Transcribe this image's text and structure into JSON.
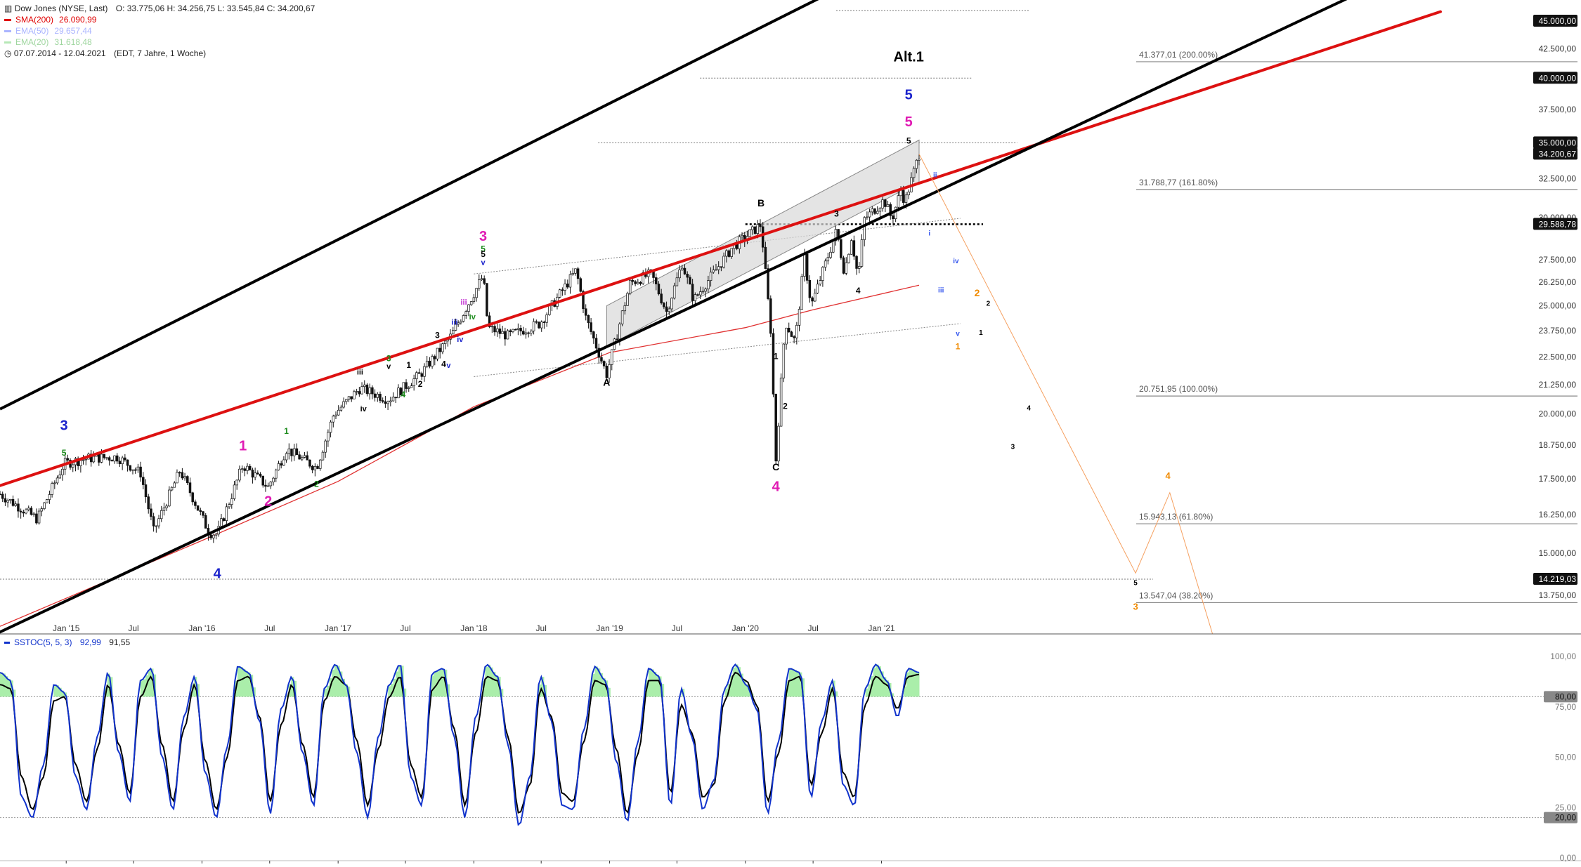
{
  "header": {
    "instrument": "Dow Jones (NYSE, Last)",
    "ohlc": "O: 33.775,06   H: 34.256,75   L: 33.545,84   C: 34.200,67",
    "range": "07.07.2014 - 12.04.2021",
    "range_detail": "(EDT, 7 Jahre, 1 Woche)"
  },
  "legend": [
    {
      "label": "SMA(200)",
      "value": "26.090,99",
      "color": "#e00000"
    },
    {
      "label": "EMA(50)",
      "value": "29.657,44",
      "color": "#aab4ff"
    },
    {
      "label": "EMA(20)",
      "value": "31.618,48",
      "color": "#b6e8b6"
    }
  ],
  "stoch_legend": {
    "label": "SSTOC(5, 5, 3)",
    "v1": "92,99",
    "v2": "91,55",
    "color": "#1133cc"
  },
  "colors": {
    "up_candle": "#ffffff",
    "down_candle": "#111111",
    "red_channel": "#dd1111",
    "black_channel": "#000000",
    "fib_line": "#888888",
    "sma": "#e03030",
    "stoch_k": "#1133cc",
    "stoch_d": "#000000",
    "stoch_fill": "#aaeeaa"
  },
  "chart_data": [
    {
      "type": "candlestick",
      "title": "Dow Jones (NYSE, Last)",
      "x_tick_labels": [
        "Jan '15",
        "Jul",
        "Jan '16",
        "Jul",
        "Jan '17",
        "Jul",
        "Jan '18",
        "Jul",
        "Jan '19",
        "Jul",
        "Jan '20",
        "Jul",
        "Jan '21"
      ],
      "x_tick_dates": [
        "2015-01",
        "2015-07",
        "2016-01",
        "2016-07",
        "2017-01",
        "2017-07",
        "2018-01",
        "2018-07",
        "2019-01",
        "2019-07",
        "2020-01",
        "2020-07",
        "2021-01"
      ],
      "y_ticks": [
        13750,
        15000,
        16250,
        17500,
        18750,
        20000,
        21250,
        22500,
        23750,
        25000,
        26250,
        27500,
        30000,
        32500,
        35000,
        37500,
        40000,
        42500,
        45000
      ],
      "y_tick_labels": [
        "13.750,00",
        "15.000,00",
        "16.250,00",
        "17.500,00",
        "18.750,00",
        "20.000,00",
        "21.250,00",
        "22.500,00",
        "23.750,00",
        "25.000,00",
        "26.250,00",
        "27.500,00",
        "30.000,00",
        "32.500,00",
        "35.000,00",
        "37.500,00",
        "40.000,00",
        "42.500,00",
        "45.000,00"
      ],
      "y_scale": "log",
      "ylim": [
        12700,
        47000
      ],
      "price_tags": [
        {
          "label": "45.000,00",
          "value": 45000
        },
        {
          "label": "40.000,00",
          "value": 40000
        },
        {
          "label": "35.000,00",
          "value": 35000
        },
        {
          "label": "34.200,67",
          "value": 34200.67
        },
        {
          "label": "29.588,78",
          "value": 29588.78
        },
        {
          "label": "14.219,03",
          "value": 14219.03
        }
      ],
      "close_path": [
        [
          "2014-07-07",
          16950
        ],
        [
          "2014-10-15",
          16100
        ],
        [
          "2014-12-26",
          18050
        ],
        [
          "2015-03-02",
          18250
        ],
        [
          "2015-05-19",
          18300
        ],
        [
          "2015-07-20",
          17700
        ],
        [
          "2015-08-24",
          15700
        ],
        [
          "2015-11-03",
          17800
        ],
        [
          "2016-01-20",
          15660
        ],
        [
          "2016-02-11",
          15600
        ],
        [
          "2016-04-20",
          18000
        ],
        [
          "2016-06-27",
          17200
        ],
        [
          "2016-08-15",
          18600
        ],
        [
          "2016-11-04",
          17900
        ],
        [
          "2016-12-20",
          19970
        ],
        [
          "2017-03-01",
          21100
        ],
        [
          "2017-05-17",
          20600
        ],
        [
          "2017-08-10",
          21700
        ],
        [
          "2017-11-01",
          23500
        ],
        [
          "2018-01-26",
          26600
        ],
        [
          "2018-02-08",
          23900
        ],
        [
          "2018-04-02",
          23500
        ],
        [
          "2018-06-27",
          24100
        ],
        [
          "2018-10-03",
          26900
        ],
        [
          "2018-10-29",
          24400
        ],
        [
          "2018-12-24",
          21700
        ],
        [
          "2019-02-25",
          26200
        ],
        [
          "2019-04-23",
          26700
        ],
        [
          "2019-06-03",
          24700
        ],
        [
          "2019-07-15",
          27300
        ],
        [
          "2019-08-15",
          25300
        ],
        [
          "2019-11-27",
          28200
        ],
        [
          "2020-02-12",
          29570
        ],
        [
          "2020-03-09",
          23800
        ],
        [
          "2020-03-23",
          18200
        ],
        [
          "2020-04-17",
          24200
        ],
        [
          "2020-05-14",
          23200
        ],
        [
          "2020-06-08",
          27600
        ],
        [
          "2020-06-26",
          25000
        ],
        [
          "2020-09-02",
          29200
        ],
        [
          "2020-09-23",
          26800
        ],
        [
          "2020-10-12",
          28800
        ],
        [
          "2020-10-30",
          26500
        ],
        [
          "2020-11-16",
          29900
        ],
        [
          "2021-01-08",
          31100
        ],
        [
          "2021-01-29",
          29900
        ],
        [
          "2021-02-24",
          31900
        ],
        [
          "2021-03-04",
          30900
        ],
        [
          "2021-04-12",
          34200
        ]
      ],
      "sma200_path": [
        [
          "2014-07-07",
          12900
        ],
        [
          "2016-01-01",
          15400
        ],
        [
          "2017-01-01",
          17400
        ],
        [
          "2018-01-01",
          20300
        ],
        [
          "2019-01-01",
          22700
        ],
        [
          "2020-01-01",
          23900
        ],
        [
          "2020-07-01",
          24800
        ],
        [
          "2021-04-12",
          26090
        ]
      ],
      "trendlines": {
        "red_upper": [
          [
            "2014-07-07",
            17250
          ],
          [
            "2021-04-12",
            32200
          ]
        ],
        "black_upper": [
          [
            "2014-07-07",
            20200
          ],
          [
            "2020-09-01",
            48000
          ]
        ],
        "black_lower": [
          [
            "2014-07-07",
            12750
          ],
          [
            "2021-01-01",
            30000
          ]
        ]
      },
      "rising_wedge": {
        "upper": [
          [
            "2018-12-24",
            25000
          ],
          [
            "2021-04-12",
            35200
          ]
        ],
        "lower": [
          [
            "2018-12-24",
            23000
          ],
          [
            "2021-04-12",
            32300
          ]
        ]
      },
      "dotted_levels": [
        {
          "value": 29588.78,
          "from": "2020-01-01",
          "to": "2021-10-01",
          "style": "thick"
        },
        {
          "value": 46000,
          "from": "2020-09-01",
          "to": "2022-02-01"
        },
        {
          "value": 40000,
          "from": "2019-09-01",
          "to": "2021-09-01"
        },
        {
          "value": 35000,
          "from": "2018-12-01",
          "to": "2022-01-01"
        },
        {
          "value": 14219.03,
          "from": "2014-07-07",
          "to": "2023-01-01"
        }
      ],
      "fib_levels": [
        {
          "label": "41.377,01 (200.00%)",
          "value": 41377.01
        },
        {
          "label": "31.788,77 (161.80%)",
          "value": 31788.77
        },
        {
          "label": "20.751,95 (100.00%)",
          "value": 20751.95
        },
        {
          "label": "15.943,13 (61.80%)",
          "value": 15943.13
        },
        {
          "label": "13.547,04 (38.20%)",
          "value": 13547.04
        }
      ],
      "forecast_path": [
        [
          "2021-04-12",
          34200
        ],
        [
          "2022-11-15",
          14400
        ],
        [
          "2023-02-15",
          17000
        ],
        [
          "2023-06-10",
          12600
        ]
      ],
      "wave_labels": [
        {
          "t": "3",
          "date": "2014-12-26",
          "value": 19350,
          "color": "#1a22cc",
          "size": 20
        },
        {
          "t": "5",
          "date": "2014-12-26",
          "value": 18350,
          "color": "#1a8a1a",
          "size": 12
        },
        {
          "t": "4",
          "date": "2016-02-11",
          "value": 14250,
          "color": "#1a22cc",
          "size": 20
        },
        {
          "t": "1",
          "date": "2016-04-20",
          "value": 18550,
          "color": "#e01ab3",
          "size": 20
        },
        {
          "t": "2",
          "date": "2016-06-27",
          "value": 16550,
          "color": "#e01ab3",
          "size": 20
        },
        {
          "t": "1",
          "date": "2016-08-15",
          "value": 19200,
          "color": "#1a8a1a",
          "size": 12
        },
        {
          "t": "2",
          "date": "2016-11-04",
          "value": 17200,
          "color": "#1a8a1a",
          "size": 12
        },
        {
          "t": "iii",
          "date": "2017-03-01",
          "value": 21700,
          "color": "#000000",
          "size": 11
        },
        {
          "t": "iv",
          "date": "2017-03-10",
          "value": 20100,
          "color": "#000000",
          "size": 11
        },
        {
          "t": "3",
          "date": "2017-05-17",
          "value": 22300,
          "color": "#1a8a1a",
          "size": 12
        },
        {
          "t": "v",
          "date": "2017-05-17",
          "value": 21950,
          "color": "#000000",
          "size": 11
        },
        {
          "t": "4",
          "date": "2017-06-25",
          "value": 20700,
          "color": "#1a8a1a",
          "size": 12
        },
        {
          "t": "1",
          "date": "2017-07-10",
          "value": 22000,
          "color": "#000000",
          "size": 12
        },
        {
          "t": "2",
          "date": "2017-08-10",
          "value": 21150,
          "color": "#000000",
          "size": 12
        },
        {
          "t": "3",
          "date": "2017-09-25",
          "value": 23400,
          "color": "#000000",
          "size": 12
        },
        {
          "t": "4",
          "date": "2017-10-12",
          "value": 22050,
          "color": "#000000",
          "size": 12
        },
        {
          "t": "v",
          "date": "2017-10-25",
          "value": 22000,
          "color": "#1a22cc",
          "size": 11
        },
        {
          "t": "iii",
          "date": "2017-11-10",
          "value": 24050,
          "color": "#1a22cc",
          "size": 11
        },
        {
          "t": "iv",
          "date": "2017-11-25",
          "value": 23200,
          "color": "#1a22cc",
          "size": 11
        },
        {
          "t": "iii",
          "date": "2017-12-05",
          "value": 25050,
          "color": "#c02ad0",
          "size": 11
        },
        {
          "t": "iv",
          "date": "2017-12-28",
          "value": 24300,
          "color": "#1a8a1a",
          "size": 11
        },
        {
          "t": "3",
          "date": "2018-01-26",
          "value": 28600,
          "color": "#e01ab3",
          "size": 20
        },
        {
          "t": "5",
          "date": "2018-01-26",
          "value": 27950,
          "color": "#1a8a1a",
          "size": 12
        },
        {
          "t": "5",
          "date": "2018-01-26",
          "value": 27650,
          "color": "#000000",
          "size": 12
        },
        {
          "t": "v",
          "date": "2018-01-26",
          "value": 27200,
          "color": "#1a22cc",
          "size": 11
        },
        {
          "t": "A",
          "date": "2018-12-24",
          "value": 21200,
          "color": "#000000",
          "size": 14
        },
        {
          "t": "B",
          "date": "2020-02-12",
          "value": 30700,
          "color": "#000000",
          "size": 14
        },
        {
          "t": "1",
          "date": "2020-03-23",
          "value": 22400,
          "color": "#000000",
          "size": 12
        },
        {
          "t": "2",
          "date": "2020-04-17",
          "value": 20200,
          "color": "#000000",
          "size": 12
        },
        {
          "t": "C",
          "date": "2020-03-23",
          "value": 17800,
          "color": "#000000",
          "size": 14
        },
        {
          "t": "4",
          "date": "2020-03-23",
          "value": 17050,
          "color": "#e01ab3",
          "size": 20
        },
        {
          "t": "3",
          "date": "2020-09-02",
          "value": 30050,
          "color": "#000000",
          "size": 12
        },
        {
          "t": "4",
          "date": "2020-10-30",
          "value": 25650,
          "color": "#000000",
          "size": 12
        },
        {
          "t": "Alt.1",
          "date": "2021-03-15",
          "value": 41400,
          "color": "#000000",
          "size": 20
        },
        {
          "t": "5",
          "date": "2021-03-15",
          "value": 38300,
          "color": "#1a22cc",
          "size": 20
        },
        {
          "t": "5",
          "date": "2021-03-15",
          "value": 36200,
          "color": "#e01ab3",
          "size": 20
        },
        {
          "t": "5",
          "date": "2021-03-15",
          "value": 34950,
          "color": "#000000",
          "size": 12
        },
        {
          "t": "ii",
          "date": "2021-05-25",
          "value": 32600,
          "color": "#3355ee",
          "size": 10
        },
        {
          "t": "i",
          "date": "2021-05-10",
          "value": 28900,
          "color": "#3355ee",
          "size": 10
        },
        {
          "t": "iii",
          "date": "2021-06-10",
          "value": 25700,
          "color": "#3355ee",
          "size": 10
        },
        {
          "t": "iv",
          "date": "2021-07-20",
          "value": 27300,
          "color": "#3355ee",
          "size": 10
        },
        {
          "t": "v",
          "date": "2021-07-25",
          "value": 23500,
          "color": "#3355ee",
          "size": 10
        },
        {
          "t": "2",
          "date": "2021-09-15",
          "value": 25500,
          "color": "#f08a00",
          "size": 14
        },
        {
          "t": "2",
          "date": "2021-10-15",
          "value": 25000,
          "color": "#000000",
          "size": 10
        },
        {
          "t": "1",
          "date": "2021-09-25",
          "value": 23550,
          "color": "#000000",
          "size": 10
        },
        {
          "t": "1",
          "date": "2021-07-25",
          "value": 22850,
          "color": "#f08a00",
          "size": 12
        },
        {
          "t": "4",
          "date": "2022-02-01",
          "value": 20150,
          "color": "#000000",
          "size": 10
        },
        {
          "t": "3",
          "date": "2021-12-20",
          "value": 18600,
          "color": "#000000",
          "size": 10
        },
        {
          "t": "4",
          "date": "2023-02-10",
          "value": 17500,
          "color": "#f08a00",
          "size": 13
        },
        {
          "t": "5",
          "date": "2022-11-15",
          "value": 14050,
          "color": "#000000",
          "size": 10
        },
        {
          "t": "3",
          "date": "2022-11-15",
          "value": 13350,
          "color": "#f08a00",
          "size": 13
        }
      ]
    },
    {
      "type": "line",
      "title": "SSTOC(5, 5, 3)",
      "ylim": [
        0,
        100
      ],
      "y_tick_labels": [
        "100,00",
        "75,00",
        "50,00",
        "25,00",
        "0,00"
      ],
      "y_ticks": [
        100,
        75,
        50,
        25,
        0
      ],
      "reference_levels": [
        {
          "label": "80,00",
          "value": 80
        },
        {
          "label": "20,00",
          "value": 20
        }
      ],
      "series": [
        {
          "name": "SSTOC(5, 5, 3)",
          "color": "#1133cc",
          "anchors": [
            92,
            88,
            30,
            20,
            46,
            86,
            82,
            40,
            24,
            60,
            92,
            52,
            28,
            88,
            94,
            50,
            24,
            70,
            90,
            42,
            20,
            55,
            95,
            92,
            68,
            22,
            74,
            90,
            52,
            26,
            84,
            96,
            86,
            52,
            20,
            60,
            86,
            96,
            40,
            26,
            92,
            94,
            60,
            20,
            70,
            96,
            90,
            56,
            16,
            40,
            90,
            68,
            26,
            24,
            64,
            95,
            88,
            48,
            18,
            58,
            94,
            90,
            26,
            84,
            60,
            24,
            38,
            84,
            96,
            86,
            74,
            22,
            58,
            94,
            92,
            30,
            68,
            88,
            36,
            26,
            84,
            96,
            88,
            70,
            94,
            92
          ]
        },
        {
          "name": "",
          "color": "#000000",
          "anchors": [
            86,
            84,
            40,
            24,
            40,
            78,
            80,
            46,
            28,
            54,
            86,
            56,
            32,
            80,
            90,
            56,
            28,
            64,
            86,
            48,
            24,
            50,
            88,
            90,
            70,
            28,
            66,
            86,
            56,
            30,
            78,
            90,
            86,
            58,
            26,
            54,
            80,
            90,
            46,
            30,
            84,
            90,
            64,
            26,
            62,
            90,
            88,
            60,
            22,
            36,
            84,
            70,
            32,
            28,
            58,
            88,
            86,
            54,
            22,
            52,
            88,
            88,
            32,
            76,
            62,
            30,
            36,
            78,
            92,
            88,
            76,
            28,
            52,
            88,
            90,
            36,
            62,
            84,
            42,
            30,
            76,
            90,
            86,
            74,
            90,
            91
          ]
        }
      ]
    }
  ]
}
